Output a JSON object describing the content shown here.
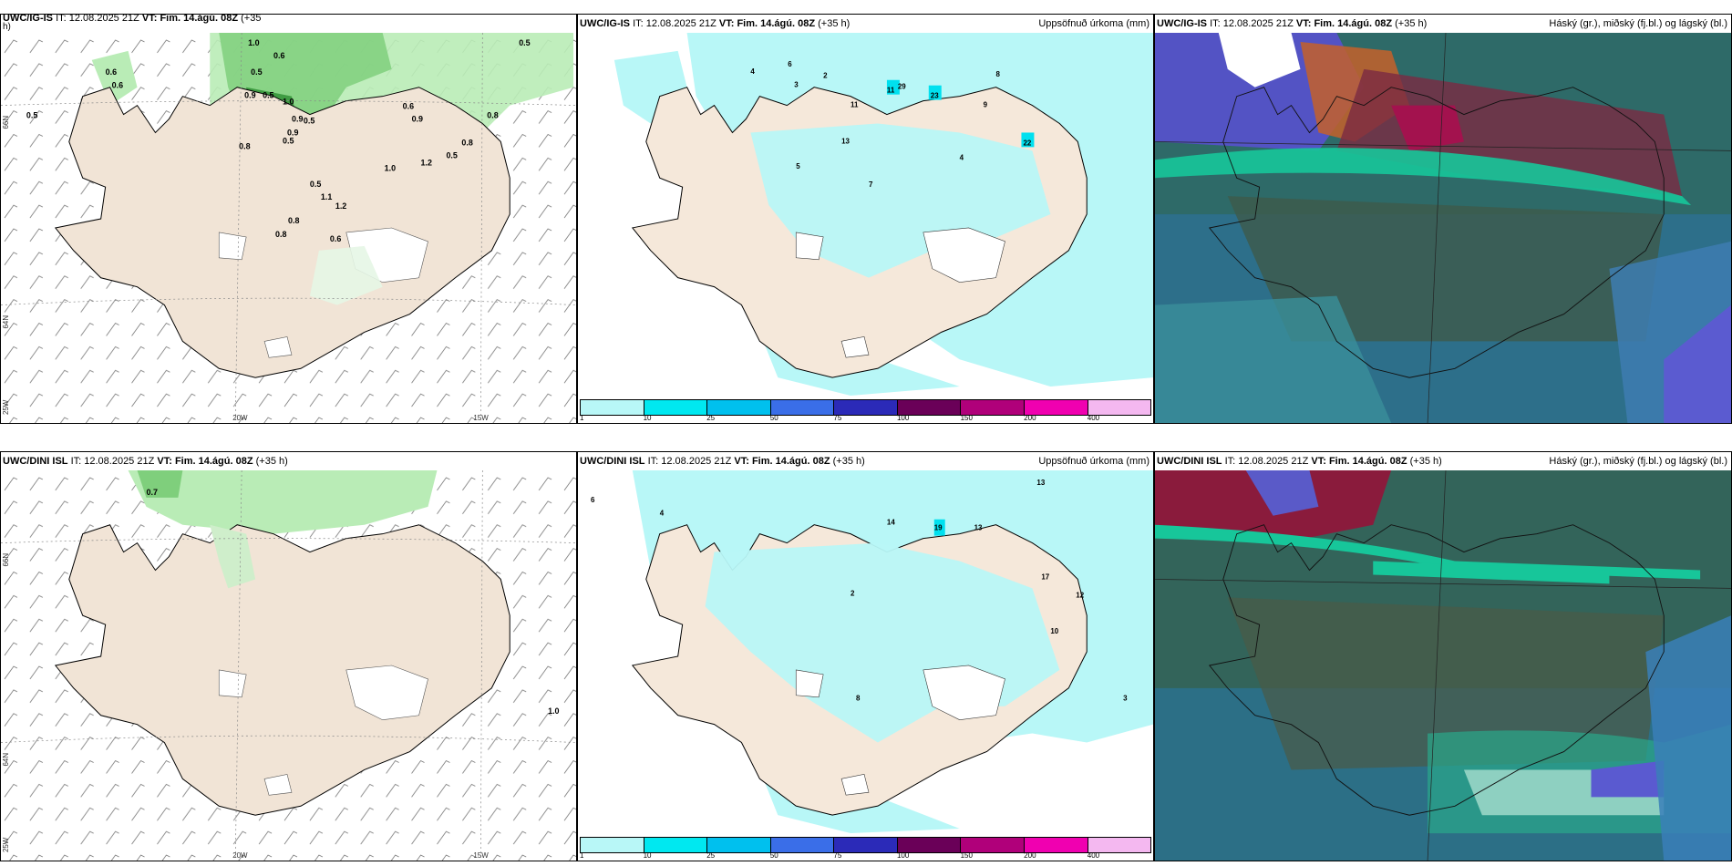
{
  "colorbar": {
    "labels": [
      "1",
      "10",
      "25",
      "50",
      "75",
      "100",
      "150",
      "200",
      "400"
    ],
    "colors": [
      "#b8f7f7",
      "#00e8f0",
      "#00c0ee",
      "#3a6ee8",
      "#2b2ab8",
      "#6a0058",
      "#b0007a",
      "#f000b0",
      "#f4b8f0"
    ]
  },
  "panels": [
    {
      "model": "UWC/IG-IS",
      "it_label": "IT:",
      "it": "12.08.2025 21Z",
      "vt_label": "VT:",
      "vt": "Fim. 14.ágú. 08Z",
      "lead": "(+35",
      "lead2": "h)",
      "right": "",
      "lon_labels": [
        "20W",
        "15W"
      ],
      "lat_labels": [
        "66N",
        "64N",
        "25W"
      ],
      "values": [
        "1.0",
        "0.6",
        "0.5",
        "0.6",
        "0.6",
        "0.5",
        "0.9",
        "0.5",
        "1.0",
        "0.9",
        "0.5",
        "0.9",
        "0.8",
        "0.6",
        "0.9",
        "0.8",
        "0.5",
        "0.8",
        "1.2",
        "0.5",
        "1.0",
        "1.1",
        "1.2",
        "0.8",
        "0.8",
        "0.6",
        "0.5",
        "0.5"
      ]
    },
    {
      "model": "UWC/IG-IS",
      "it_label": "IT:",
      "it": "12.08.2025 21Z",
      "vt_label": "VT:",
      "vt": "Fim. 14.ágú. 08Z",
      "lead": "(+35 h)",
      "right": "Uppsöfnuð úrkoma (mm)",
      "values": [
        "6",
        "4",
        "3",
        "2",
        "11",
        "8",
        "23",
        "29",
        "11",
        "22",
        "13",
        "7",
        "5",
        "4",
        "9"
      ]
    },
    {
      "model": "UWC/IG-IS",
      "it_label": "IT:",
      "it": "12.08.2025 21Z",
      "vt_label": "VT:",
      "vt": "Fim. 14.ágú. 08Z",
      "lead": "(+35 h)",
      "right": "Háský (gr.), miðský (fj.bl.) og lágský (bl.)"
    },
    {
      "model": "UWC/DINI ISL",
      "it_label": "IT:",
      "it": "12.08.2025 21Z",
      "vt_label": "VT:",
      "vt": "Fim. 14.ágú. 08Z",
      "lead": "(+35 h)",
      "right": "",
      "lon_labels": [
        "20W",
        "15W"
      ],
      "lat_labels": [
        "66N",
        "64N",
        "25W"
      ],
      "values": [
        "0.7",
        "1.0"
      ]
    },
    {
      "model": "UWC/DINI ISL",
      "it_label": "IT:",
      "it": "12.08.2025 21Z",
      "vt_label": "VT:",
      "vt": "Fim. 14.ágú. 08Z",
      "lead": "(+35 h)",
      "right": "Uppsöfnuð úrkoma (mm)",
      "values": [
        "13",
        "19",
        "14",
        "13",
        "17",
        "12",
        "10",
        "8",
        "6",
        "4",
        "3",
        "2"
      ]
    },
    {
      "model": "UWC/DINI ISL",
      "it_label": "IT:",
      "it": "12.08.2025 21Z",
      "vt_label": "VT:",
      "vt": "Fim. 14.ágú. 08Z",
      "lead": "(+35 h)",
      "right": "Háský (gr.), miðský (fj.bl.) og lágský (bl.)"
    }
  ]
}
